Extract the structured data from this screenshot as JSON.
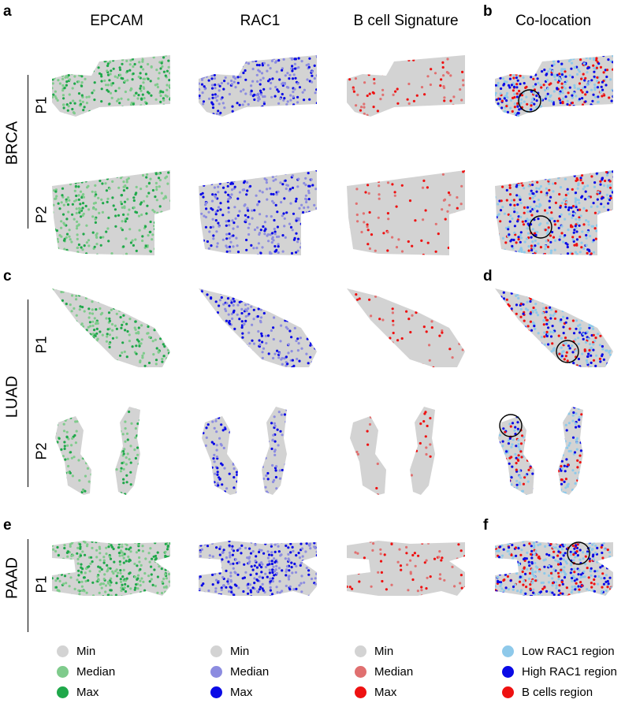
{
  "panel_letters": [
    "a",
    "b",
    "c",
    "d",
    "e",
    "f"
  ],
  "column_headers": [
    "EPCAM",
    "RAC1",
    "B cell Signature",
    "Co-location"
  ],
  "groups": [
    {
      "name": "BRCA",
      "rows": [
        "P1",
        "P2"
      ]
    },
    {
      "name": "LUAD",
      "rows": [
        "P1",
        "P2"
      ]
    },
    {
      "name": "PAAD",
      "rows": [
        "P1"
      ]
    }
  ],
  "colors": {
    "tissue_grey": "#d3d3d3",
    "green_median": "#7fcb8c",
    "green_max": "#1fa84a",
    "blue_median": "#8c8ce0",
    "blue_max": "#0a0ae6",
    "red_median": "#e07070",
    "red_max": "#ee1111",
    "low_rac1": "#8ec9ea",
    "high_rac1": "#0a0ae6",
    "bcell": "#ee1111"
  },
  "legends": [
    {
      "items": [
        {
          "label": "Min",
          "color": "#d3d3d3"
        },
        {
          "label": "Median",
          "color": "#7fcb8c"
        },
        {
          "label": "Max",
          "color": "#1fa84a"
        }
      ]
    },
    {
      "items": [
        {
          "label": "Min",
          "color": "#d3d3d3"
        },
        {
          "label": "Median",
          "color": "#8c8ce0"
        },
        {
          "label": "Max",
          "color": "#0a0ae6"
        }
      ]
    },
    {
      "items": [
        {
          "label": "Min",
          "color": "#d3d3d3"
        },
        {
          "label": "Median",
          "color": "#e07070"
        },
        {
          "label": "Max",
          "color": "#ee1111"
        }
      ]
    },
    {
      "items": [
        {
          "label": "Low RAC1 region",
          "color": "#8ec9ea"
        },
        {
          "label": "High RAC1 region",
          "color": "#0a0ae6"
        },
        {
          "label": "B cells region",
          "color": "#ee1111"
        }
      ]
    }
  ]
}
